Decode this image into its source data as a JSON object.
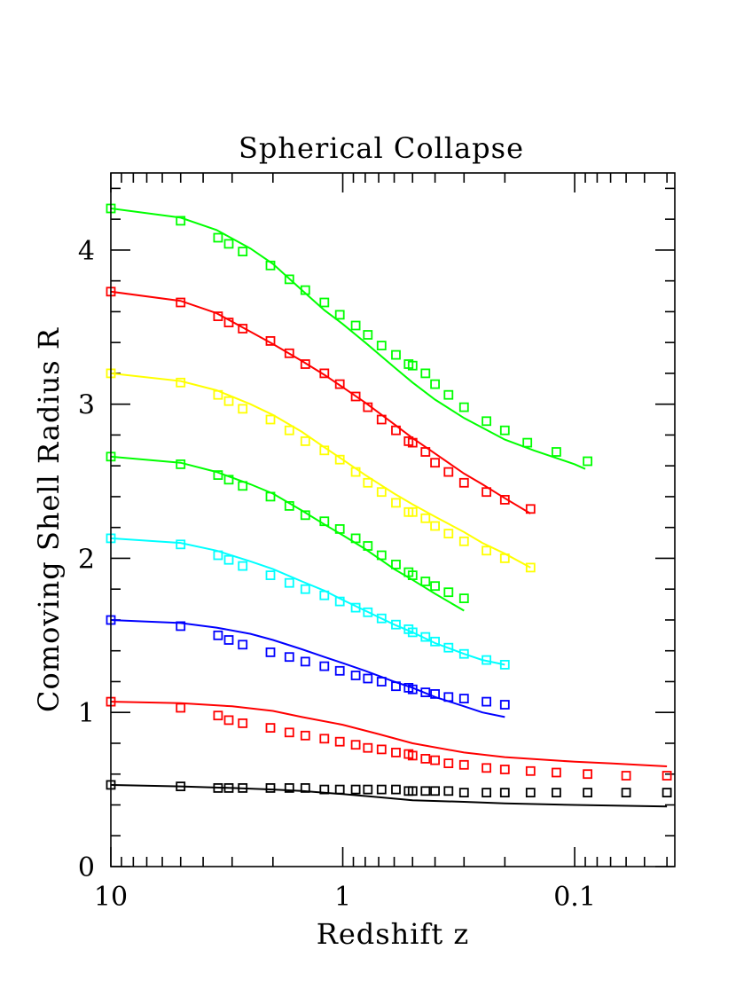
{
  "chart_data": {
    "type": "scatter",
    "title": "Spherical Collapse",
    "xlabel": "Redshift z",
    "ylabel": "Comoving Shell Radius R",
    "x_scale": "log",
    "x_reversed": true,
    "xlim": [
      10,
      0.037
    ],
    "ylim": [
      0,
      4.5
    ],
    "x_ticks": [
      {
        "value": 10,
        "label": "10"
      },
      {
        "value": 1,
        "label": "1"
      },
      {
        "value": 0.1,
        "label": "0.1"
      }
    ],
    "y_ticks": [
      {
        "value": 0,
        "label": "0"
      },
      {
        "value": 1,
        "label": "1"
      },
      {
        "value": 2,
        "label": "2"
      },
      {
        "value": 3,
        "label": "3"
      },
      {
        "value": 4,
        "label": "4"
      }
    ],
    "grid": false,
    "series": [
      {
        "color": "#00ff00",
        "points": [
          [
            10,
            4.27
          ],
          [
            5,
            4.19
          ],
          [
            3.45,
            4.08
          ],
          [
            3.1,
            4.04
          ],
          [
            2.7,
            3.99
          ],
          [
            2.05,
            3.9
          ],
          [
            1.7,
            3.81
          ],
          [
            1.45,
            3.74
          ],
          [
            1.2,
            3.66
          ],
          [
            1.03,
            3.58
          ],
          [
            0.88,
            3.51
          ],
          [
            0.78,
            3.45
          ],
          [
            0.68,
            3.38
          ],
          [
            0.59,
            3.32
          ],
          [
            0.52,
            3.26
          ],
          [
            0.5,
            3.25
          ],
          [
            0.44,
            3.2
          ],
          [
            0.4,
            3.13
          ],
          [
            0.35,
            3.06
          ],
          [
            0.3,
            2.98
          ],
          [
            0.24,
            2.89
          ],
          [
            0.2,
            2.83
          ],
          [
            0.16,
            2.75
          ],
          [
            0.12,
            2.69
          ],
          [
            0.088,
            2.63
          ]
        ],
        "line": [
          [
            10,
            4.27
          ],
          [
            5,
            4.21
          ],
          [
            3.5,
            4.13
          ],
          [
            2.5,
            4.01
          ],
          [
            2,
            3.91
          ],
          [
            1.5,
            3.74
          ],
          [
            1.2,
            3.61
          ],
          [
            1,
            3.52
          ],
          [
            0.8,
            3.4
          ],
          [
            0.6,
            3.24
          ],
          [
            0.5,
            3.14
          ],
          [
            0.4,
            3.03
          ],
          [
            0.3,
            2.91
          ],
          [
            0.2,
            2.77
          ],
          [
            0.15,
            2.7
          ],
          [
            0.1,
            2.61
          ],
          [
            0.09,
            2.58
          ]
        ]
      },
      {
        "color": "#ff0000",
        "points": [
          [
            10,
            3.73
          ],
          [
            5,
            3.66
          ],
          [
            3.45,
            3.57
          ],
          [
            3.1,
            3.53
          ],
          [
            2.7,
            3.49
          ],
          [
            2.05,
            3.41
          ],
          [
            1.7,
            3.33
          ],
          [
            1.45,
            3.26
          ],
          [
            1.2,
            3.2
          ],
          [
            1.03,
            3.13
          ],
          [
            0.88,
            3.05
          ],
          [
            0.78,
            2.98
          ],
          [
            0.68,
            2.9
          ],
          [
            0.59,
            2.83
          ],
          [
            0.52,
            2.76
          ],
          [
            0.5,
            2.75
          ],
          [
            0.44,
            2.69
          ],
          [
            0.4,
            2.62
          ],
          [
            0.35,
            2.56
          ],
          [
            0.3,
            2.49
          ],
          [
            0.24,
            2.43
          ],
          [
            0.2,
            2.38
          ],
          [
            0.155,
            2.32
          ]
        ],
        "line": [
          [
            10,
            3.73
          ],
          [
            5,
            3.67
          ],
          [
            3.5,
            3.59
          ],
          [
            2.5,
            3.47
          ],
          [
            2,
            3.39
          ],
          [
            1.5,
            3.28
          ],
          [
            1.2,
            3.19
          ],
          [
            1,
            3.11
          ],
          [
            0.8,
            3.01
          ],
          [
            0.6,
            2.87
          ],
          [
            0.5,
            2.78
          ],
          [
            0.4,
            2.68
          ],
          [
            0.3,
            2.55
          ],
          [
            0.25,
            2.48
          ],
          [
            0.2,
            2.39
          ],
          [
            0.155,
            2.29
          ]
        ]
      },
      {
        "color": "#ffff00",
        "points": [
          [
            10,
            3.2
          ],
          [
            5,
            3.14
          ],
          [
            3.45,
            3.06
          ],
          [
            3.1,
            3.02
          ],
          [
            2.7,
            2.97
          ],
          [
            2.05,
            2.9
          ],
          [
            1.7,
            2.83
          ],
          [
            1.45,
            2.76
          ],
          [
            1.2,
            2.7
          ],
          [
            1.03,
            2.64
          ],
          [
            0.88,
            2.56
          ],
          [
            0.78,
            2.49
          ],
          [
            0.68,
            2.43
          ],
          [
            0.59,
            2.36
          ],
          [
            0.52,
            2.3
          ],
          [
            0.5,
            2.3
          ],
          [
            0.44,
            2.26
          ],
          [
            0.4,
            2.21
          ],
          [
            0.35,
            2.16
          ],
          [
            0.3,
            2.11
          ],
          [
            0.24,
            2.05
          ],
          [
            0.2,
            2.0
          ],
          [
            0.155,
            1.94
          ]
        ],
        "line": [
          [
            10,
            3.2
          ],
          [
            5,
            3.15
          ],
          [
            3.5,
            3.09
          ],
          [
            2.5,
            3.0
          ],
          [
            2,
            2.93
          ],
          [
            1.5,
            2.82
          ],
          [
            1.2,
            2.72
          ],
          [
            1,
            2.64
          ],
          [
            0.8,
            2.54
          ],
          [
            0.6,
            2.42
          ],
          [
            0.5,
            2.35
          ],
          [
            0.4,
            2.27
          ],
          [
            0.3,
            2.17
          ],
          [
            0.25,
            2.1
          ],
          [
            0.2,
            2.03
          ],
          [
            0.155,
            1.94
          ]
        ]
      },
      {
        "color": "#00ff00",
        "points": [
          [
            10,
            2.66
          ],
          [
            5,
            2.61
          ],
          [
            3.45,
            2.54
          ],
          [
            3.1,
            2.51
          ],
          [
            2.7,
            2.47
          ],
          [
            2.05,
            2.4
          ],
          [
            1.7,
            2.34
          ],
          [
            1.45,
            2.28
          ],
          [
            1.2,
            2.24
          ],
          [
            1.03,
            2.19
          ],
          [
            0.88,
            2.13
          ],
          [
            0.78,
            2.08
          ],
          [
            0.68,
            2.02
          ],
          [
            0.59,
            1.96
          ],
          [
            0.52,
            1.91
          ],
          [
            0.5,
            1.89
          ],
          [
            0.44,
            1.85
          ],
          [
            0.4,
            1.82
          ],
          [
            0.35,
            1.78
          ],
          [
            0.3,
            1.74
          ]
        ],
        "line": [
          [
            10,
            2.66
          ],
          [
            5,
            2.62
          ],
          [
            3.5,
            2.56
          ],
          [
            2.5,
            2.48
          ],
          [
            2,
            2.42
          ],
          [
            1.5,
            2.31
          ],
          [
            1.2,
            2.22
          ],
          [
            1,
            2.15
          ],
          [
            0.8,
            2.06
          ],
          [
            0.6,
            1.93
          ],
          [
            0.5,
            1.86
          ],
          [
            0.4,
            1.77
          ],
          [
            0.3,
            1.66
          ]
        ]
      },
      {
        "color": "#00ffff",
        "points": [
          [
            10,
            2.13
          ],
          [
            5,
            2.09
          ],
          [
            3.45,
            2.02
          ],
          [
            3.1,
            1.99
          ],
          [
            2.7,
            1.95
          ],
          [
            2.05,
            1.89
          ],
          [
            1.7,
            1.84
          ],
          [
            1.45,
            1.8
          ],
          [
            1.2,
            1.76
          ],
          [
            1.03,
            1.72
          ],
          [
            0.88,
            1.68
          ],
          [
            0.78,
            1.65
          ],
          [
            0.68,
            1.61
          ],
          [
            0.59,
            1.57
          ],
          [
            0.52,
            1.54
          ],
          [
            0.5,
            1.52
          ],
          [
            0.44,
            1.49
          ],
          [
            0.4,
            1.46
          ],
          [
            0.35,
            1.42
          ],
          [
            0.3,
            1.38
          ],
          [
            0.24,
            1.34
          ],
          [
            0.2,
            1.31
          ]
        ],
        "line": [
          [
            10,
            2.13
          ],
          [
            5,
            2.1
          ],
          [
            3.5,
            2.05
          ],
          [
            2.5,
            1.98
          ],
          [
            2,
            1.93
          ],
          [
            1.5,
            1.85
          ],
          [
            1.2,
            1.79
          ],
          [
            1,
            1.73
          ],
          [
            0.8,
            1.66
          ],
          [
            0.6,
            1.57
          ],
          [
            0.5,
            1.52
          ],
          [
            0.4,
            1.45
          ],
          [
            0.3,
            1.38
          ],
          [
            0.25,
            1.34
          ],
          [
            0.2,
            1.31
          ]
        ]
      },
      {
        "color": "#0000ff",
        "points": [
          [
            10,
            1.6
          ],
          [
            5,
            1.56
          ],
          [
            3.45,
            1.5
          ],
          [
            3.1,
            1.47
          ],
          [
            2.7,
            1.44
          ],
          [
            2.05,
            1.39
          ],
          [
            1.7,
            1.36
          ],
          [
            1.45,
            1.33
          ],
          [
            1.2,
            1.3
          ],
          [
            1.03,
            1.27
          ],
          [
            0.88,
            1.24
          ],
          [
            0.78,
            1.22
          ],
          [
            0.68,
            1.2
          ],
          [
            0.59,
            1.17
          ],
          [
            0.52,
            1.16
          ],
          [
            0.5,
            1.15
          ],
          [
            0.44,
            1.13
          ],
          [
            0.4,
            1.12
          ],
          [
            0.35,
            1.1
          ],
          [
            0.3,
            1.09
          ],
          [
            0.24,
            1.07
          ],
          [
            0.2,
            1.05
          ]
        ],
        "line": [
          [
            10,
            1.6
          ],
          [
            5,
            1.58
          ],
          [
            3.5,
            1.55
          ],
          [
            2.5,
            1.51
          ],
          [
            2,
            1.47
          ],
          [
            1.5,
            1.41
          ],
          [
            1.2,
            1.36
          ],
          [
            1,
            1.32
          ],
          [
            0.8,
            1.27
          ],
          [
            0.6,
            1.2
          ],
          [
            0.5,
            1.16
          ],
          [
            0.4,
            1.1
          ],
          [
            0.3,
            1.04
          ],
          [
            0.25,
            1.0
          ],
          [
            0.2,
            0.97
          ]
        ]
      },
      {
        "color": "#ff0000",
        "points": [
          [
            10,
            1.07
          ],
          [
            5,
            1.03
          ],
          [
            3.45,
            0.98
          ],
          [
            3.1,
            0.95
          ],
          [
            2.7,
            0.93
          ],
          [
            2.05,
            0.9
          ],
          [
            1.7,
            0.87
          ],
          [
            1.45,
            0.85
          ],
          [
            1.2,
            0.83
          ],
          [
            1.03,
            0.81
          ],
          [
            0.88,
            0.79
          ],
          [
            0.78,
            0.77
          ],
          [
            0.68,
            0.76
          ],
          [
            0.59,
            0.74
          ],
          [
            0.52,
            0.73
          ],
          [
            0.5,
            0.72
          ],
          [
            0.44,
            0.7
          ],
          [
            0.4,
            0.69
          ],
          [
            0.35,
            0.67
          ],
          [
            0.3,
            0.66
          ],
          [
            0.24,
            0.64
          ],
          [
            0.2,
            0.63
          ],
          [
            0.155,
            0.62
          ],
          [
            0.12,
            0.61
          ],
          [
            0.088,
            0.6
          ],
          [
            0.06,
            0.59
          ],
          [
            0.04,
            0.59
          ]
        ],
        "line": [
          [
            10,
            1.07
          ],
          [
            5,
            1.06
          ],
          [
            3,
            1.04
          ],
          [
            2,
            1.01
          ],
          [
            1.5,
            0.97
          ],
          [
            1,
            0.92
          ],
          [
            0.7,
            0.86
          ],
          [
            0.5,
            0.8
          ],
          [
            0.3,
            0.74
          ],
          [
            0.2,
            0.71
          ],
          [
            0.1,
            0.68
          ],
          [
            0.07,
            0.67
          ],
          [
            0.04,
            0.65
          ]
        ]
      },
      {
        "color": "#000000",
        "points": [
          [
            10,
            0.53
          ],
          [
            5,
            0.52
          ],
          [
            3.45,
            0.51
          ],
          [
            3.1,
            0.51
          ],
          [
            2.7,
            0.51
          ],
          [
            2.05,
            0.51
          ],
          [
            1.7,
            0.51
          ],
          [
            1.45,
            0.51
          ],
          [
            1.2,
            0.5
          ],
          [
            1.03,
            0.5
          ],
          [
            0.88,
            0.5
          ],
          [
            0.78,
            0.5
          ],
          [
            0.68,
            0.5
          ],
          [
            0.59,
            0.5
          ],
          [
            0.52,
            0.49
          ],
          [
            0.5,
            0.49
          ],
          [
            0.44,
            0.49
          ],
          [
            0.4,
            0.49
          ],
          [
            0.35,
            0.49
          ],
          [
            0.3,
            0.48
          ],
          [
            0.24,
            0.48
          ],
          [
            0.2,
            0.48
          ],
          [
            0.155,
            0.48
          ],
          [
            0.12,
            0.48
          ],
          [
            0.088,
            0.48
          ],
          [
            0.06,
            0.48
          ],
          [
            0.04,
            0.48
          ]
        ],
        "line": [
          [
            10,
            0.53
          ],
          [
            5,
            0.52
          ],
          [
            3,
            0.51
          ],
          [
            2,
            0.5
          ],
          [
            1.5,
            0.49
          ],
          [
            1,
            0.47
          ],
          [
            0.7,
            0.45
          ],
          [
            0.5,
            0.43
          ],
          [
            0.3,
            0.42
          ],
          [
            0.2,
            0.41
          ],
          [
            0.1,
            0.4
          ],
          [
            0.04,
            0.39
          ]
        ]
      }
    ]
  }
}
